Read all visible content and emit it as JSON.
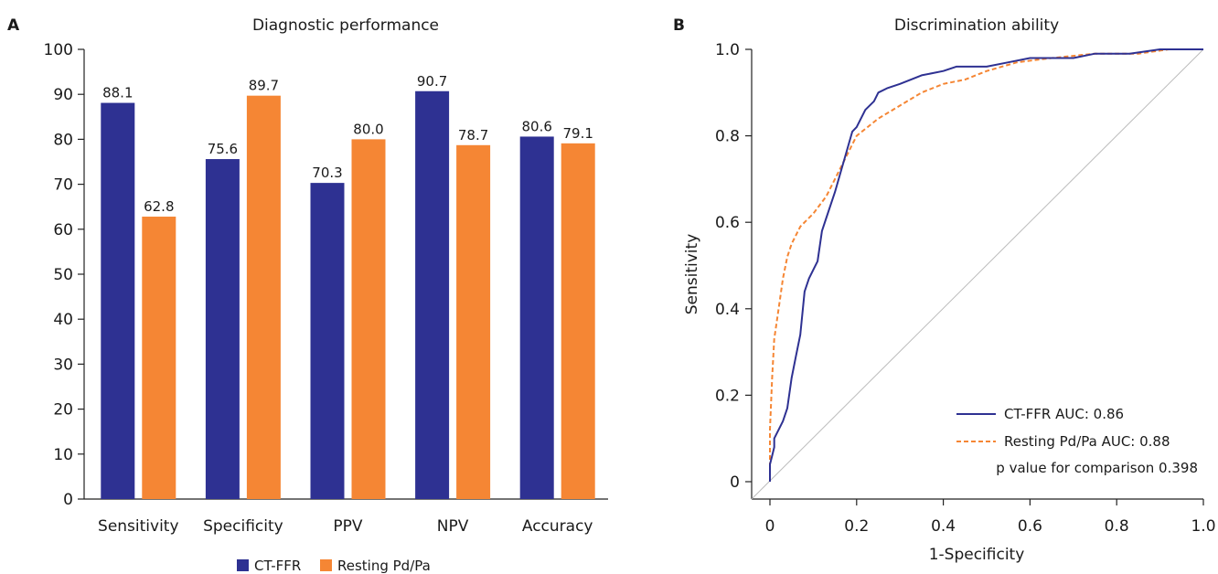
{
  "chart_data": [
    {
      "panel": "A",
      "type": "bar",
      "title": "Diagnostic performance",
      "categories": [
        "Sensitivity",
        "Specificity",
        "PPV",
        "NPV",
        "Accuracy"
      ],
      "series": [
        {
          "name": "CT-FFR",
          "color": "#2e3192",
          "values": [
            88.1,
            75.6,
            70.3,
            90.7,
            80.6
          ]
        },
        {
          "name": "Resting Pd/Pa",
          "color": "#f58634",
          "values": [
            62.8,
            89.7,
            80.0,
            78.7,
            79.1
          ]
        }
      ],
      "value_labels": [
        [
          "88.1",
          "75.6",
          "70.3",
          "90.7",
          "80.6"
        ],
        [
          "62.8",
          "89.7",
          "80.0",
          "78.7",
          "79.1"
        ]
      ],
      "ylim": [
        0,
        100
      ],
      "yticks": [
        0,
        10,
        20,
        30,
        40,
        50,
        60,
        70,
        80,
        90,
        100
      ],
      "ytick_labels": [
        "0",
        "10",
        "20",
        "30",
        "40",
        "50",
        "60",
        "70",
        "80",
        "90",
        "100"
      ],
      "xlabel": "",
      "ylabel": "",
      "grid": false,
      "legend": "bottom"
    },
    {
      "panel": "B",
      "type": "line",
      "title": "Discrimination ability",
      "xlabel": "1-Specificity",
      "ylabel": "Sensitivity",
      "xlim": [
        0,
        1
      ],
      "ylim": [
        0,
        1
      ],
      "xticks": [
        0,
        0.2,
        0.4,
        0.6,
        0.8,
        1.0
      ],
      "xtick_labels": [
        "0",
        "0.2",
        "0.4",
        "0.6",
        "0.8",
        "1.0"
      ],
      "yticks": [
        0,
        0.2,
        0.4,
        0.6,
        0.8,
        1.0
      ],
      "ytick_labels": [
        "0",
        "0.2",
        "0.4",
        "0.6",
        "0.8",
        "1.0"
      ],
      "grid": false,
      "legend": "bottom-right",
      "series": [
        {
          "name": "CT-FFR AUC: 0.86",
          "color": "#2e3192",
          "style": "solid",
          "x": [
            0,
            0,
            0.005,
            0.01,
            0.01,
            0.02,
            0.03,
            0.04,
            0.05,
            0.06,
            0.07,
            0.08,
            0.09,
            0.1,
            0.11,
            0.12,
            0.13,
            0.15,
            0.17,
            0.19,
            0.2,
            0.22,
            0.24,
            0.25,
            0.27,
            0.3,
            0.35,
            0.4,
            0.43,
            0.5,
            0.55,
            0.6,
            0.7,
            0.75,
            0.83,
            0.9,
            1.0
          ],
          "y": [
            0,
            0.04,
            0.06,
            0.08,
            0.1,
            0.12,
            0.14,
            0.17,
            0.24,
            0.29,
            0.34,
            0.44,
            0.47,
            0.49,
            0.51,
            0.58,
            0.61,
            0.67,
            0.74,
            0.81,
            0.82,
            0.86,
            0.88,
            0.9,
            0.91,
            0.92,
            0.94,
            0.95,
            0.96,
            0.96,
            0.97,
            0.98,
            0.98,
            0.99,
            0.99,
            1.0,
            1.0
          ]
        },
        {
          "name": "Resting Pd/Pa AUC: 0.88",
          "color": "#f58634",
          "style": "dashed",
          "x": [
            0,
            0,
            0.005,
            0.01,
            0.02,
            0.03,
            0.04,
            0.05,
            0.07,
            0.1,
            0.13,
            0.15,
            0.2,
            0.25,
            0.3,
            0.35,
            0.4,
            0.45,
            0.5,
            0.57,
            0.65,
            0.75,
            0.85,
            0.92,
            1.0
          ],
          "y": [
            0,
            0.12,
            0.24,
            0.33,
            0.4,
            0.47,
            0.52,
            0.55,
            0.59,
            0.62,
            0.66,
            0.7,
            0.8,
            0.84,
            0.87,
            0.9,
            0.92,
            0.93,
            0.95,
            0.97,
            0.98,
            0.99,
            0.99,
            1.0,
            1.0
          ]
        },
        {
          "name": "",
          "color": "#bbbbbb",
          "style": "thin",
          "x": [
            0,
            1
          ],
          "y": [
            0,
            1
          ]
        }
      ],
      "annotation": "p value for comparison 0.398"
    }
  ]
}
